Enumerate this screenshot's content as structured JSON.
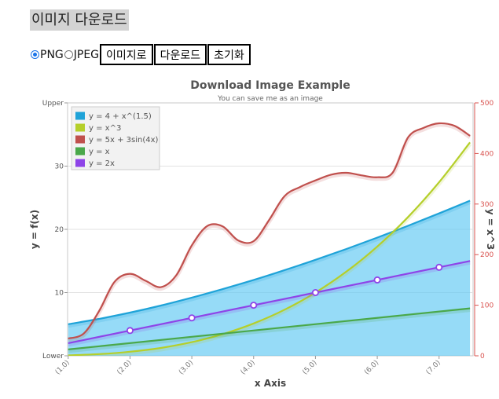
{
  "header": {
    "title": "이미지 다운로드"
  },
  "format_options": [
    {
      "label": "PNG",
      "checked": true
    },
    {
      "label": "JPEG",
      "checked": false
    }
  ],
  "buttons": {
    "to_image": "이미지로",
    "download": "다운로드",
    "reset": "초기화"
  },
  "chart_data": {
    "type": "line",
    "title": "Download Image Example",
    "subtitle": "You can save me as an image",
    "xlabel": "x Axis",
    "ylabel": "y = f(x)",
    "y2label": "y = x^3",
    "xlim": [
      0.99,
      7.55
    ],
    "ylim": [
      0,
      40
    ],
    "y2lim": [
      0,
      500
    ],
    "x_ticks": [
      "(1.0)",
      "(2.0)",
      "(3.0)",
      "(4.0)",
      "(5.0)",
      "(6.0)",
      "(7.0)"
    ],
    "y_ticks": [
      {
        "v": 0,
        "label": "Lower"
      },
      {
        "v": 10,
        "label": "10"
      },
      {
        "v": 20,
        "label": "20"
      },
      {
        "v": 30,
        "label": "30"
      },
      {
        "v": 40,
        "label": "Upper"
      }
    ],
    "y2_ticks": [
      "0",
      "100",
      "200",
      "300",
      "400",
      "500"
    ],
    "grid": true,
    "legend_position": "top-left",
    "series": [
      {
        "name": "y = 4 + x^(1.5)",
        "color": "#1fa3d8",
        "area": true,
        "x": [
          1,
          1.5,
          2,
          2.5,
          3,
          3.5,
          4,
          4.5,
          5,
          5.5,
          6,
          6.5,
          7,
          7.5
        ],
        "y": [
          5.0,
          5.84,
          6.83,
          7.95,
          9.2,
          10.55,
          12.0,
          13.55,
          15.18,
          16.9,
          18.7,
          20.57,
          22.52,
          24.54
        ]
      },
      {
        "name": "y = x^3",
        "color": "#b5cf2a",
        "axis": "y2",
        "x": [
          1,
          1.5,
          2,
          2.5,
          3,
          3.5,
          4,
          4.5,
          5,
          5.5,
          6,
          6.5,
          7,
          7.5
        ],
        "y": [
          1,
          3.4,
          8,
          15.6,
          27,
          42.9,
          64,
          91.1,
          125,
          166.4,
          216,
          274.6,
          343,
          421.9
        ]
      },
      {
        "name": "y = 5x + 3sin(4x)",
        "color": "#c0504d",
        "x": [
          1,
          1.25,
          1.5,
          1.75,
          2,
          2.25,
          2.5,
          2.75,
          3,
          3.25,
          3.5,
          3.75,
          4,
          4.25,
          4.5,
          4.75,
          5,
          5.25,
          5.5,
          5.75,
          6,
          6.25,
          6.5,
          6.75,
          7,
          7.25,
          7.5
        ],
        "y": [
          2.73,
          3.52,
          7.07,
          11.7,
          12.97,
          11.88,
          10.86,
          12.75,
          17.46,
          20.53,
          20.47,
          18.25,
          18.14,
          21.46,
          25.26,
          26.7,
          27.74,
          28.64,
          28.95,
          28.53,
          28.24,
          28.97,
          34.56,
          36.05,
          36.77,
          36.37,
          34.8
        ]
      },
      {
        "name": "y = x",
        "color": "#4aa84a",
        "x": [
          1,
          7.5
        ],
        "y": [
          1,
          7.5
        ]
      },
      {
        "name": "y = 2x",
        "color": "#8e44e8",
        "markers": true,
        "x": [
          1,
          2,
          3,
          4,
          5,
          6,
          7,
          7.5
        ],
        "y": [
          2,
          4,
          6,
          8,
          10,
          12,
          14,
          15
        ]
      }
    ]
  }
}
